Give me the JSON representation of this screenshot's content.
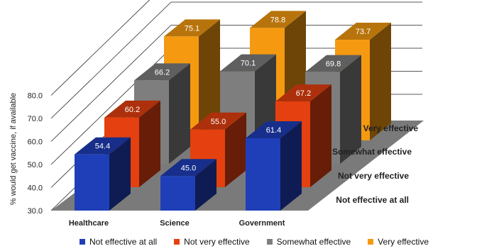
{
  "chart_data": {
    "type": "bar",
    "ylabel": "% would get vaccine, if available",
    "yticks": [
      "30.0",
      "40.0",
      "50.0",
      "60.0",
      "70.0",
      "80.0"
    ],
    "ylim": [
      30,
      90
    ],
    "categories": [
      "Healthcare",
      "Science",
      "Government"
    ],
    "series": [
      {
        "name": "Not effective at all",
        "color": "#1F3FB8",
        "values": [
          54.4,
          45.0,
          61.4
        ],
        "labels": [
          "54.4",
          "45.0",
          "61.4"
        ]
      },
      {
        "name": "Not very effective",
        "color": "#E5400F",
        "values": [
          60.2,
          55.0,
          67.2
        ],
        "labels": [
          "60.2",
          "55.0",
          "67.2"
        ]
      },
      {
        "name": "Somewhat effective",
        "color": "#7E7E7E",
        "values": [
          66.2,
          70.1,
          69.8
        ],
        "labels": [
          "66.2",
          "70.1",
          "69.8"
        ]
      },
      {
        "name": "Very effective",
        "color": "#F59A10",
        "values": [
          75.1,
          78.8,
          73.7
        ],
        "labels": [
          "75.1",
          "78.8",
          "73.7"
        ]
      }
    ],
    "depth_labels": [
      "Very effective",
      "Somewhat effective",
      "Not very effective",
      "Not effective at all"
    ],
    "style": "3d-clustered-bar",
    "legend_position": "bottom"
  }
}
